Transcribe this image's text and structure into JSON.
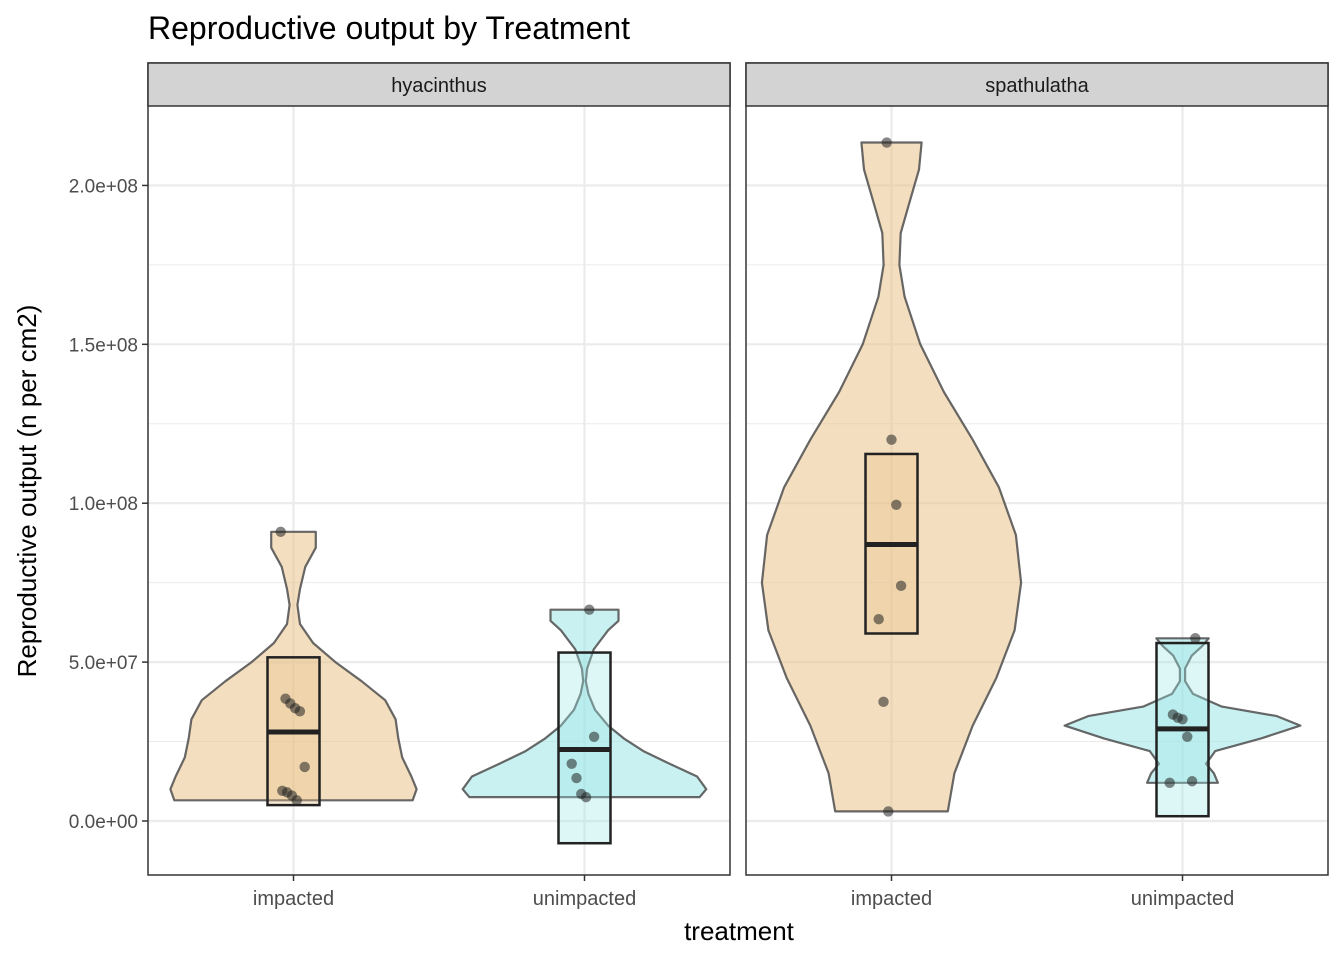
{
  "chart_data": {
    "type": "violin",
    "title": "Reproductive output by Treatment",
    "xlabel": "treatment",
    "ylabel": "Reproductive output (n per cm2)",
    "ylim": [
      -17000000,
      225000000
    ],
    "yticks": [
      0,
      50000000,
      100000000,
      150000000,
      200000000
    ],
    "ytick_labels": [
      "0.0e+00",
      "5.0e+07",
      "1.0e+08",
      "1.5e+08",
      "2.0e+08"
    ],
    "categories": [
      "impacted",
      "unimpacted"
    ],
    "grid": true,
    "legend": "none",
    "colors": {
      "impacted": "#E9C28A",
      "unimpacted": "#9EE6E6",
      "outline": "#4d4d4d",
      "box": "#222222",
      "point": "#222222",
      "strip": "#d3d3d3",
      "grid": "#ebebeb"
    },
    "panels": [
      {
        "facet": "hyacinthus",
        "groups": [
          {
            "treatment": "impacted",
            "points": [
              91000000,
              38500000,
              37000000,
              35500000,
              34500000,
              17000000,
              9500000,
              9000000,
              8000000,
              6500000
            ],
            "box": {
              "q1": 5000000,
              "median": 28000000,
              "q3": 51500000
            },
            "violin_range": [
              6500000,
              91000000
            ],
            "violin_profile": [
              [
                6500000,
                0.91
              ],
              [
                10000000,
                0.94
              ],
              [
                14000000,
                0.9
              ],
              [
                20000000,
                0.83
              ],
              [
                26000000,
                0.8
              ],
              [
                32000000,
                0.78
              ],
              [
                38000000,
                0.7
              ],
              [
                44000000,
                0.52
              ],
              [
                50000000,
                0.32
              ],
              [
                56000000,
                0.15
              ],
              [
                62000000,
                0.05
              ],
              [
                68000000,
                0.03
              ],
              [
                73000000,
                0.05
              ],
              [
                80000000,
                0.09
              ],
              [
                86000000,
                0.17
              ],
              [
                91000000,
                0.17
              ]
            ]
          },
          {
            "treatment": "unimpacted",
            "points": [
              66500000,
              26500000,
              18000000,
              13500000,
              8500000,
              7500000
            ],
            "box": {
              "q1": -7000000,
              "median": 22500000,
              "q3": 53000000
            },
            "violin_range": [
              7500000,
              66500000
            ],
            "violin_profile": [
              [
                7500000,
                0.88
              ],
              [
                10000000,
                0.93
              ],
              [
                14000000,
                0.86
              ],
              [
                18000000,
                0.65
              ],
              [
                22000000,
                0.45
              ],
              [
                26000000,
                0.3
              ],
              [
                30000000,
                0.18
              ],
              [
                35000000,
                0.08
              ],
              [
                40000000,
                0.03
              ],
              [
                44000000,
                0.01
              ],
              [
                48000000,
                0.02
              ],
              [
                54000000,
                0.07
              ],
              [
                60000000,
                0.18
              ],
              [
                63000000,
                0.26
              ],
              [
                66500000,
                0.26
              ]
            ]
          }
        ]
      },
      {
        "facet": "spathulatha",
        "groups": [
          {
            "treatment": "impacted",
            "points": [
              213500000,
              120000000,
              99500000,
              74000000,
              63500000,
              37500000,
              3000000
            ],
            "box": {
              "q1": 59000000,
              "median": 87000000,
              "q3": 115500000
            },
            "violin_range": [
              3000000,
              213500000
            ],
            "violin_profile": [
              [
                3000000,
                0.43
              ],
              [
                15000000,
                0.48
              ],
              [
                30000000,
                0.62
              ],
              [
                45000000,
                0.8
              ],
              [
                60000000,
                0.94
              ],
              [
                75000000,
                0.99
              ],
              [
                90000000,
                0.95
              ],
              [
                105000000,
                0.82
              ],
              [
                120000000,
                0.62
              ],
              [
                135000000,
                0.4
              ],
              [
                150000000,
                0.22
              ],
              [
                165000000,
                0.1
              ],
              [
                175000000,
                0.06
              ],
              [
                185000000,
                0.07
              ],
              [
                195000000,
                0.14
              ],
              [
                205000000,
                0.21
              ],
              [
                213500000,
                0.23
              ]
            ]
          },
          {
            "treatment": "unimpacted",
            "points": [
              57500000,
              33500000,
              32500000,
              32000000,
              26500000,
              12500000,
              12000000
            ],
            "box": {
              "q1": 1500000,
              "median": 29000000,
              "q3": 56000000
            },
            "violin_range": [
              12000000,
              57500000
            ],
            "violin_profile": [
              [
                12000000,
                0.27
              ],
              [
                15000000,
                0.24
              ],
              [
                18000000,
                0.18
              ],
              [
                22000000,
                0.25
              ],
              [
                26000000,
                0.6
              ],
              [
                30000000,
                0.9
              ],
              [
                33000000,
                0.72
              ],
              [
                36000000,
                0.3
              ],
              [
                40000000,
                0.08
              ],
              [
                44000000,
                0.02
              ],
              [
                48000000,
                0.02
              ],
              [
                52000000,
                0.07
              ],
              [
                55000000,
                0.15
              ],
              [
                57500000,
                0.2
              ]
            ]
          }
        ]
      }
    ]
  }
}
